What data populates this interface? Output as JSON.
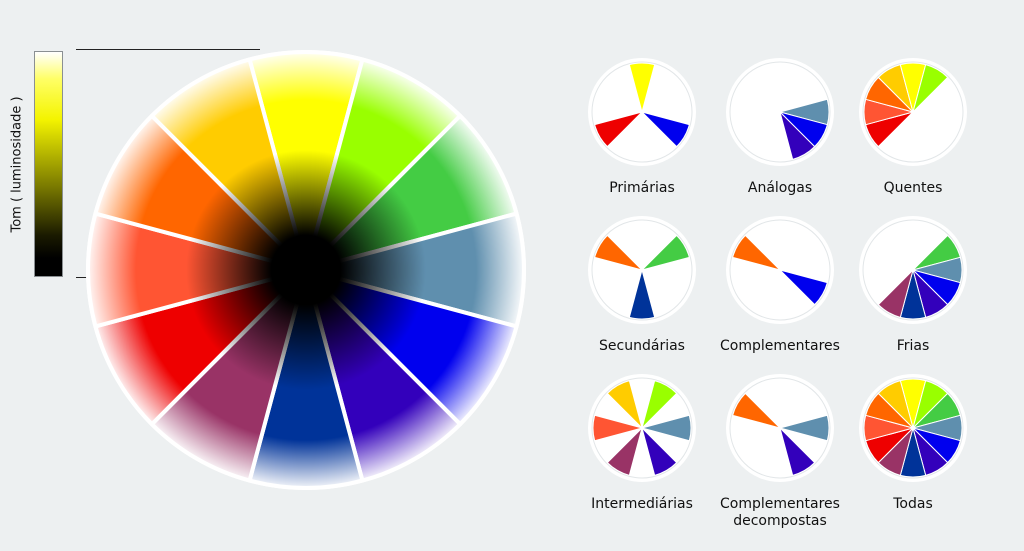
{
  "scale_label": "Tom ( luminosidade )",
  "colors": {
    "c0": "#ffff00",
    "c1": "#99ff00",
    "c2": "#44cc44",
    "c3": "#5f8fae",
    "c4": "#0000ee",
    "c5": "#3300bb",
    "c6": "#003399",
    "c7": "#993366",
    "c8": "#ee0000",
    "c9": "#ff5533",
    "c10": "#ff6600",
    "c11": "#ffcc00"
  },
  "swatches": [
    {
      "name": "Primárias",
      "sectors": [
        0,
        4,
        8
      ]
    },
    {
      "name": "Análogas",
      "sectors": [
        3,
        4,
        5
      ]
    },
    {
      "name": "Quentes",
      "sectors": [
        8,
        9,
        10,
        11,
        0,
        1
      ]
    },
    {
      "name": "Secundárias",
      "sectors": [
        2,
        6,
        10
      ]
    },
    {
      "name": "Complementares",
      "sectors": [
        4,
        10
      ]
    },
    {
      "name": "Frias",
      "sectors": [
        2,
        3,
        4,
        5,
        6,
        7
      ]
    },
    {
      "name": "Intermediárias",
      "sectors": [
        1,
        3,
        5,
        7,
        9,
        11
      ]
    },
    {
      "name": "Complementares decompostas",
      "sectors": [
        3,
        5,
        10
      ]
    },
    {
      "name": "Todas",
      "sectors": [
        0,
        1,
        2,
        3,
        4,
        5,
        6,
        7,
        8,
        9,
        10,
        11
      ]
    }
  ]
}
